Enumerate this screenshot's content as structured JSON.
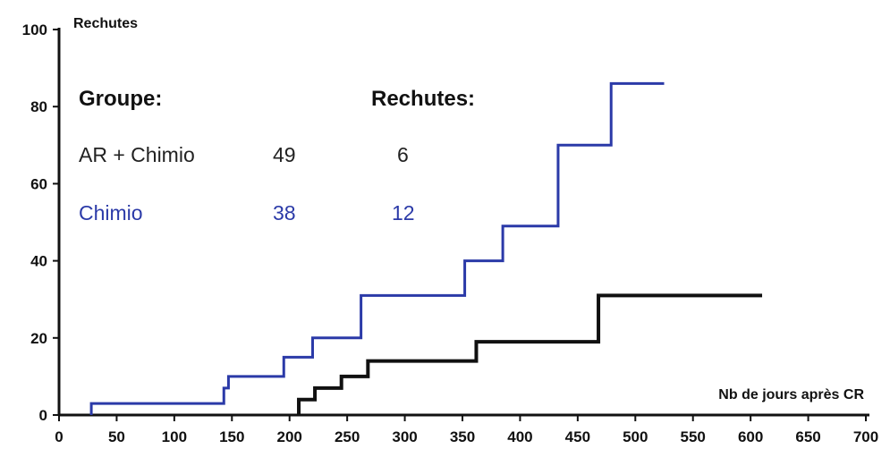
{
  "chart_data": {
    "type": "line",
    "step": true,
    "ylabel": "Rechutes",
    "xlabel": "Nb de jours après CR",
    "xlim": [
      0,
      700
    ],
    "ylim": [
      0,
      100
    ],
    "x_ticks": [
      0,
      50,
      100,
      150,
      200,
      250,
      300,
      350,
      400,
      450,
      500,
      550,
      600,
      650,
      700
    ],
    "y_ticks": [
      0,
      20,
      40,
      60,
      80,
      100
    ],
    "grid": false,
    "series": [
      {
        "name": "Chimio",
        "color": "#2b3aa8",
        "x": [
          28,
          143,
          147,
          195,
          220,
          262,
          352,
          385,
          433,
          479,
          525
        ],
        "y": [
          3,
          7,
          10,
          15,
          20,
          31,
          40,
          49,
          70,
          86,
          86
        ]
      },
      {
        "name": "AR + Chimio",
        "color": "#111111",
        "x": [
          208,
          222,
          245,
          268,
          362,
          468,
          610
        ],
        "y": [
          4,
          7,
          10,
          14,
          19,
          31,
          31
        ]
      }
    ],
    "legend_table": {
      "headers": [
        "Groupe:",
        "Rechutes:"
      ],
      "rows": [
        {
          "group": "AR + Chimio",
          "n": "49",
          "relapses": "6",
          "color": "#222222"
        },
        {
          "group": "Chimio",
          "n": "38",
          "relapses": "12",
          "color": "#2b3aa8"
        }
      ]
    }
  }
}
